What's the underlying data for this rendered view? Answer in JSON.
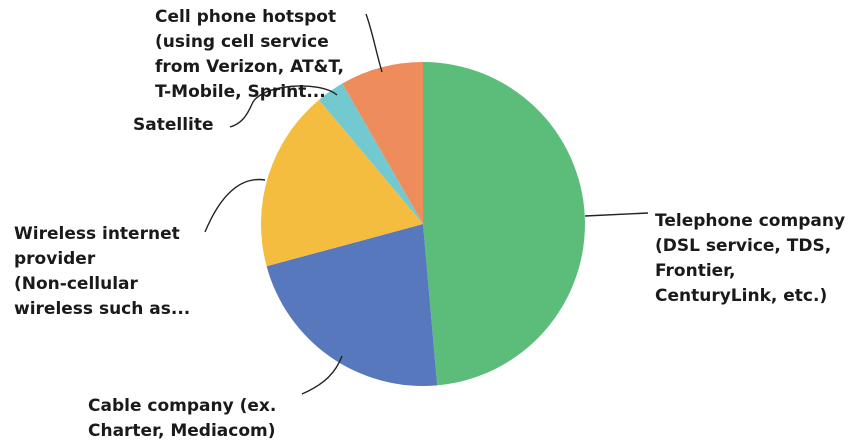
{
  "chart_data": {
    "type": "pie",
    "slices": [
      {
        "label": [
          "Telephone company",
          "(DSL service, TDS,",
          "Frontier,",
          "CenturyLink, etc.)"
        ],
        "value": 48.6,
        "color": "#5cbd7a"
      },
      {
        "label": [
          "Cable company (ex.",
          "Charter, Mediacom)"
        ],
        "value": 22.2,
        "color": "#5878bd"
      },
      {
        "label": [
          "Wireless internet",
          "provider",
          "(Non-cellular",
          "wireless such as..."
        ],
        "value": 18.1,
        "color": "#f5bd3f"
      },
      {
        "label": [
          "Satellite"
        ],
        "value": 2.8,
        "color": "#73c9d0"
      },
      {
        "label": [
          "Cell phone hotspot",
          "(using cell service",
          "from Verizon, AT&T,",
          "T-Mobile, Sprint..."
        ],
        "value": 8.3,
        "color": "#ef8c5c"
      }
    ]
  }
}
